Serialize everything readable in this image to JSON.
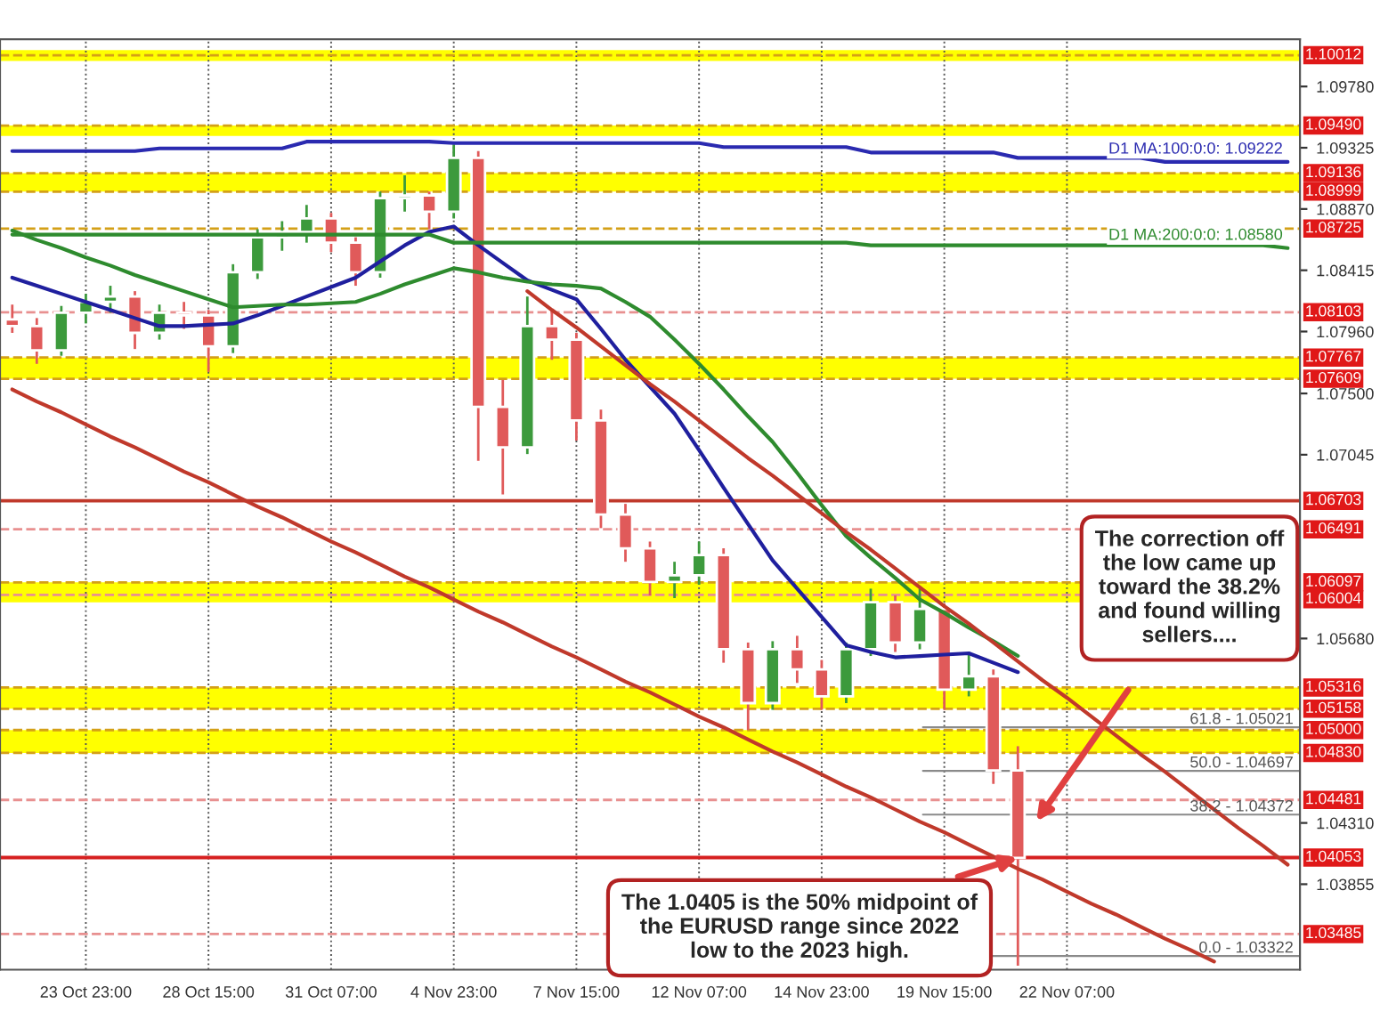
{
  "chart_data": {
    "type": "candlestick",
    "categories": [
      null,
      null,
      null,
      "23 Oct 23:00",
      null,
      null,
      null,
      null,
      "28 Oct 15:00",
      null,
      null,
      null,
      null,
      "31 Oct 07:00",
      null,
      null,
      null,
      null,
      "4 Nov 23:00",
      null,
      null,
      null,
      null,
      "7 Nov 15:00",
      null,
      null,
      null,
      null,
      "12 Nov 07:00",
      null,
      null,
      null,
      null,
      "14 Nov 23:00",
      null,
      null,
      null,
      null,
      "19 Nov 15:00",
      null,
      null,
      null,
      null,
      "22 Nov 07:00",
      null,
      null,
      null,
      null,
      null,
      null,
      null,
      null,
      null
    ],
    "ohlc": [
      [
        1.0805,
        1.0816,
        1.0795,
        1.08
      ],
      [
        1.08,
        1.0806,
        1.0772,
        1.0782
      ],
      [
        1.0782,
        1.0815,
        1.0778,
        1.081
      ],
      [
        1.081,
        1.0824,
        1.0802,
        1.0818
      ],
      [
        1.0818,
        1.083,
        1.081,
        1.0822
      ],
      [
        1.0822,
        1.0826,
        1.0783,
        1.0795
      ],
      [
        1.0795,
        1.0816,
        1.079,
        1.081
      ],
      [
        1.081,
        1.0818,
        1.0798,
        1.0808
      ],
      [
        1.0808,
        1.0812,
        1.0766,
        1.0785
      ],
      [
        1.0785,
        1.0846,
        1.078,
        1.084
      ],
      [
        1.084,
        1.0872,
        1.0835,
        1.0866
      ],
      [
        1.0866,
        1.0878,
        1.0856,
        1.087
      ],
      [
        1.087,
        1.089,
        1.0862,
        1.088
      ],
      [
        1.088,
        1.0884,
        1.0855,
        1.0862
      ],
      [
        1.0862,
        1.0866,
        1.083,
        1.084
      ],
      [
        1.084,
        1.09,
        1.0836,
        1.0895
      ],
      [
        1.0895,
        1.0912,
        1.0885,
        1.0897
      ],
      [
        1.0897,
        1.09,
        1.0872,
        1.0885
      ],
      [
        1.0885,
        1.0935,
        1.088,
        1.0925
      ],
      [
        1.0925,
        1.093,
        1.07,
        1.074
      ],
      [
        1.074,
        1.076,
        1.0675,
        1.071
      ],
      [
        1.071,
        1.0822,
        1.0705,
        1.08
      ],
      [
        1.08,
        1.0812,
        1.0775,
        1.079
      ],
      [
        1.079,
        1.0795,
        1.0715,
        1.073
      ],
      [
        1.073,
        1.0738,
        1.065,
        1.066
      ],
      [
        1.066,
        1.0668,
        1.0625,
        1.0635
      ],
      [
        1.0635,
        1.064,
        1.06,
        1.061
      ],
      [
        1.061,
        1.0625,
        1.0598,
        1.0615
      ],
      [
        1.0615,
        1.064,
        1.0608,
        1.063
      ],
      [
        1.063,
        1.0635,
        1.055,
        1.056
      ],
      [
        1.056,
        1.0565,
        1.05,
        1.052
      ],
      [
        1.052,
        1.0566,
        1.0515,
        1.056
      ],
      [
        1.056,
        1.057,
        1.0535,
        1.0545
      ],
      [
        1.0545,
        1.0552,
        1.0515,
        1.0525
      ],
      [
        1.0525,
        1.0565,
        1.052,
        1.056
      ],
      [
        1.056,
        1.0605,
        1.0555,
        1.0595
      ],
      [
        1.0595,
        1.06,
        1.0558,
        1.0565
      ],
      [
        1.0565,
        1.0605,
        1.056,
        1.059
      ],
      [
        1.059,
        1.0594,
        1.0515,
        1.053
      ],
      [
        1.053,
        1.0558,
        1.0525,
        1.054
      ],
      [
        1.054,
        1.0545,
        1.046,
        1.047
      ],
      [
        1.047,
        1.0488,
        1.0325,
        1.0405
      ],
      null,
      null,
      null,
      null,
      null,
      null,
      null,
      null,
      null,
      null,
      null
    ],
    "colors": [
      "#e05a5a",
      "#e05a5a",
      "#3c9a3c",
      "#3c9a3c",
      "#3c9a3c",
      "#e05a5a",
      "#3c9a3c",
      "#e05a5a",
      "#e05a5a",
      "#3c9a3c",
      "#3c9a3c",
      "#3c9a3c",
      "#3c9a3c",
      "#e05a5a",
      "#e05a5a",
      "#3c9a3c",
      "#3c9a3c",
      "#e05a5a",
      "#3c9a3c",
      "#e05a5a",
      "#e05a5a",
      "#3c9a3c",
      "#e05a5a",
      "#e05a5a",
      "#e05a5a",
      "#e05a5a",
      "#e05a5a",
      "#3c9a3c",
      "#3c9a3c",
      "#e05a5a",
      "#e05a5a",
      "#3c9a3c",
      "#e05a5a",
      "#e05a5a",
      "#3c9a3c",
      "#3c9a3c",
      "#e05a5a",
      "#3c9a3c",
      "#e05a5a",
      "#3c9a3c",
      "#e05a5a",
      "#e05a5a",
      null,
      null,
      null,
      null,
      null,
      null,
      null,
      null,
      null,
      null,
      null
    ],
    "series": [
      {
        "type": "line",
        "color": "#1f1f9e",
        "values": [
          1.0836,
          1.083,
          1.0824,
          1.0818,
          1.0812,
          1.0806,
          1.08,
          1.08,
          1.0801,
          1.0802,
          1.0808,
          1.0815,
          1.0822,
          1.0829,
          1.0836,
          1.0848,
          1.086,
          1.087,
          1.0874,
          1.086,
          1.0847,
          1.0834,
          1.0827,
          1.082,
          1.0798,
          1.0775,
          1.0755,
          1.0735,
          1.0708,
          1.068,
          1.0653,
          1.0626,
          1.0605,
          1.0584,
          1.0563,
          1.0558,
          1.0554,
          1.0555,
          1.0556,
          1.0557,
          1.055,
          1.0543,
          null,
          null,
          null,
          null,
          null,
          null,
          null,
          null,
          null,
          null,
          null
        ]
      },
      {
        "type": "line",
        "color": "#2e8b2e",
        "values": [
          1.0871,
          1.0864,
          1.0858,
          1.0851,
          1.0845,
          1.0838,
          1.0832,
          1.0826,
          1.082,
          1.0814,
          1.0815,
          1.0816,
          1.0816,
          1.0817,
          1.0818,
          1.0824,
          1.0831,
          1.0837,
          1.0843,
          1.084,
          1.0836,
          1.0833,
          1.0831,
          1.083,
          1.0828,
          1.0818,
          1.0807,
          1.079,
          1.0772,
          1.0753,
          1.0733,
          1.0714,
          1.0691,
          1.0667,
          1.0644,
          1.0628,
          1.0613,
          1.0597,
          1.0587,
          1.0576,
          1.0566,
          1.0555,
          null,
          null,
          null,
          null,
          null,
          null,
          null,
          null,
          null,
          null,
          null
        ]
      },
      {
        "type": "line",
        "name": "D1 MA:100:0:0: 1.09222",
        "color": "#2a2ab0",
        "values": [
          1.093,
          1.093,
          1.093,
          1.093,
          1.093,
          1.093,
          1.0932,
          1.0932,
          1.0932,
          1.0932,
          1.0932,
          1.0932,
          1.0937,
          1.0937,
          1.0937,
          1.0937,
          1.0937,
          1.0937,
          1.0936,
          1.0936,
          1.0936,
          1.0936,
          1.0936,
          1.0936,
          1.0936,
          1.0936,
          1.0936,
          1.0936,
          1.0936,
          1.0933,
          1.0933,
          1.0933,
          1.0933,
          1.0933,
          1.0933,
          1.0929,
          1.0929,
          1.0929,
          1.0929,
          1.0929,
          1.0929,
          1.0925,
          1.0925,
          1.0925,
          1.0925,
          1.0925,
          1.0925,
          1.0922,
          1.0922,
          1.0922,
          1.0922,
          1.0922,
          1.0922
        ]
      },
      {
        "type": "line",
        "name": "D1 MA:200:0:0: 1.08580",
        "color": "#2e8b2e",
        "values": [
          1.0868,
          1.0868,
          1.0868,
          1.0868,
          1.0868,
          1.0868,
          1.0868,
          1.0868,
          1.0868,
          1.0868,
          1.0868,
          1.0868,
          1.0868,
          1.0868,
          1.0868,
          1.0868,
          1.0868,
          1.0868,
          1.0862,
          1.0862,
          1.0862,
          1.0862,
          1.0862,
          1.0862,
          1.0862,
          1.0862,
          1.0862,
          1.0862,
          1.0862,
          1.0862,
          1.0862,
          1.0862,
          1.0862,
          1.0862,
          1.0862,
          1.086,
          1.086,
          1.086,
          1.086,
          1.086,
          1.086,
          1.086,
          1.086,
          1.086,
          1.086,
          1.086,
          1.086,
          1.086,
          1.086,
          1.086,
          1.086,
          1.086,
          1.0858
        ]
      },
      {
        "type": "line",
        "color": "#c0392b",
        "values": [
          1.0753,
          1.0744,
          1.0736,
          1.0727,
          1.0718,
          1.071,
          1.0701,
          1.0692,
          1.0684,
          1.0675,
          1.0666,
          1.0658,
          1.0649,
          1.064,
          1.0632,
          1.0623,
          1.0614,
          1.0606,
          1.0597,
          1.0588,
          1.058,
          1.0571,
          1.0562,
          1.0554,
          1.0545,
          1.0536,
          1.0528,
          1.0519,
          1.051,
          1.0502,
          1.0493,
          1.0484,
          1.0476,
          1.0467,
          1.0458,
          1.045,
          1.0441,
          1.0432,
          1.0424,
          1.0415,
          1.0406,
          1.0397,
          1.0389,
          1.038,
          1.0371,
          1.0363,
          1.0354,
          1.0345,
          1.0337,
          1.0328,
          null,
          null,
          null
        ]
      },
      {
        "type": "line",
        "color": "#c0392b",
        "values": [
          null,
          null,
          null,
          null,
          null,
          null,
          null,
          null,
          null,
          null,
          null,
          null,
          null,
          null,
          null,
          null,
          null,
          null,
          null,
          null,
          null,
          1.0826,
          1.0812,
          1.0799,
          1.0785,
          1.0771,
          1.0757,
          1.0744,
          1.073,
          1.0716,
          1.0702,
          1.0689,
          1.0675,
          1.0661,
          1.0647,
          1.0634,
          1.062,
          1.0606,
          1.0592,
          1.0579,
          1.0565,
          1.0551,
          1.0537,
          1.0524,
          1.051,
          1.0496,
          1.0482,
          1.0469,
          1.0455,
          1.0441,
          1.0427,
          1.0414,
          1.04
        ]
      }
    ],
    "ylim": [
      1.0322,
      1.1013
    ],
    "yticks": [
      {
        "value": 1.0978,
        "label": "1.09780"
      },
      {
        "value": 1.09325,
        "label": "1.09325"
      },
      {
        "value": 1.0887,
        "label": "1.08870"
      },
      {
        "value": 1.08415,
        "label": "1.08415"
      },
      {
        "value": 1.0796,
        "label": "1.07960"
      },
      {
        "value": 1.075,
        "label": "1.07500"
      },
      {
        "value": 1.07045,
        "label": "1.07045"
      },
      {
        "value": 1.0568,
        "label": "1.05680"
      },
      {
        "value": 1.0431,
        "label": "1.04310"
      },
      {
        "value": 1.03855,
        "label": "1.03855"
      }
    ],
    "bands": [
      {
        "axis": "y",
        "from": 1.0997,
        "to": 1.1005,
        "color": "#ffff00"
      },
      {
        "axis": "y",
        "from": 1.09413,
        "to": 1.0949,
        "color": "#ffff00"
      },
      {
        "axis": "y",
        "from": 1.08999,
        "to": 1.09136,
        "color": "#ffff00"
      },
      {
        "axis": "y",
        "from": 1.07609,
        "to": 1.07767,
        "color": "#ffff00"
      },
      {
        "axis": "y",
        "from": 1.05949,
        "to": 1.06097,
        "color": "#ffff00"
      },
      {
        "axis": "y",
        "from": 1.05158,
        "to": 1.05316,
        "color": "#ffff00"
      },
      {
        "axis": "y",
        "from": 1.0483,
        "to": 1.05,
        "color": "#ffff00"
      }
    ],
    "ref_lines": [
      {
        "axis": "y",
        "value": 1.10012,
        "label": "1.10012",
        "color": "#d4a017",
        "line_style": "dashed"
      },
      {
        "axis": "y",
        "value": 1.0949,
        "label": "1.09490",
        "color": "#d4a017",
        "line_style": "dashed"
      },
      {
        "axis": "y",
        "value": 1.09136,
        "label": "1.09136",
        "color": "#d4a017",
        "line_style": "dashed"
      },
      {
        "axis": "y",
        "value": 1.08999,
        "label": "1.08999",
        "color": "#d4a017",
        "line_style": "dashed"
      },
      {
        "axis": "y",
        "value": 1.08725,
        "label": "1.08725",
        "color": "#d4a017",
        "line_style": "dashed"
      },
      {
        "axis": "y",
        "value": 1.08103,
        "label": "1.08103",
        "color": "#e89090",
        "line_style": "dashed"
      },
      {
        "axis": "y",
        "value": 1.07767,
        "label": "1.07767",
        "color": "#d4a017",
        "line_style": "dashed"
      },
      {
        "axis": "y",
        "value": 1.07609,
        "label": "1.07609",
        "color": "#d4a017",
        "line_style": "dashed"
      },
      {
        "axis": "y",
        "value": 1.06703,
        "label": "1.06703",
        "color": "#c0392b",
        "line_style": "solid"
      },
      {
        "axis": "y",
        "value": 1.06491,
        "label": "1.06491",
        "color": "#e89090",
        "line_style": "dashed"
      },
      {
        "axis": "y",
        "value": 1.06097,
        "label": "1.06097",
        "color": "#d4a017",
        "line_style": "dashed"
      },
      {
        "axis": "y",
        "value": 1.06004,
        "label": "1.06004",
        "color": "#e89090",
        "line_style": "dashed"
      },
      {
        "axis": "y",
        "value": 1.05316,
        "label": "1.05316",
        "color": "#d4a017",
        "line_style": "dashed"
      },
      {
        "axis": "y",
        "value": 1.05158,
        "label": "1.05158",
        "color": "#d4a017",
        "line_style": "dashed"
      },
      {
        "axis": "y",
        "value": 1.05,
        "label": "1.05000",
        "color": "#d4a017",
        "line_style": "dashed"
      },
      {
        "axis": "y",
        "value": 1.0483,
        "label": "1.04830",
        "color": "#d4a017",
        "line_style": "dashed"
      },
      {
        "axis": "y",
        "value": 1.04481,
        "label": "1.04481",
        "color": "#e89090",
        "line_style": "dashed"
      },
      {
        "axis": "y",
        "value": 1.04053,
        "label": "1.04053",
        "color": "#d62020",
        "line_style": "solid"
      },
      {
        "axis": "y",
        "value": 1.03485,
        "label": "1.03485",
        "color": "#e89090",
        "line_style": "dashed"
      },
      {
        "axis": "y",
        "value": 1.05021
      },
      {
        "axis": "y",
        "value": 1.04697
      },
      {
        "axis": "y",
        "value": 1.04372
      },
      {
        "axis": "y",
        "value": 1.03322
      }
    ],
    "annotations": [
      "The correction off\nthe low came up\ntoward the 38.2%\nand found willing\nsellers....",
      {
        "text": "The 1.0405 is the 50% midpoint of\nthe EURUSD range since 2022\nlow to the 2023 high.",
        "y": 1.04053
      },
      {
        "text": "61.8 - 1.05021",
        "y": 1.05021
      },
      {
        "text": "50.0 - 1.04697",
        "y": 1.04697
      },
      {
        "text": "38.2 - 1.04372",
        "y": 1.04372
      },
      {
        "text": "0.0 - 1.03322",
        "y": 1.03322
      }
    ],
    "grid": "x"
  }
}
